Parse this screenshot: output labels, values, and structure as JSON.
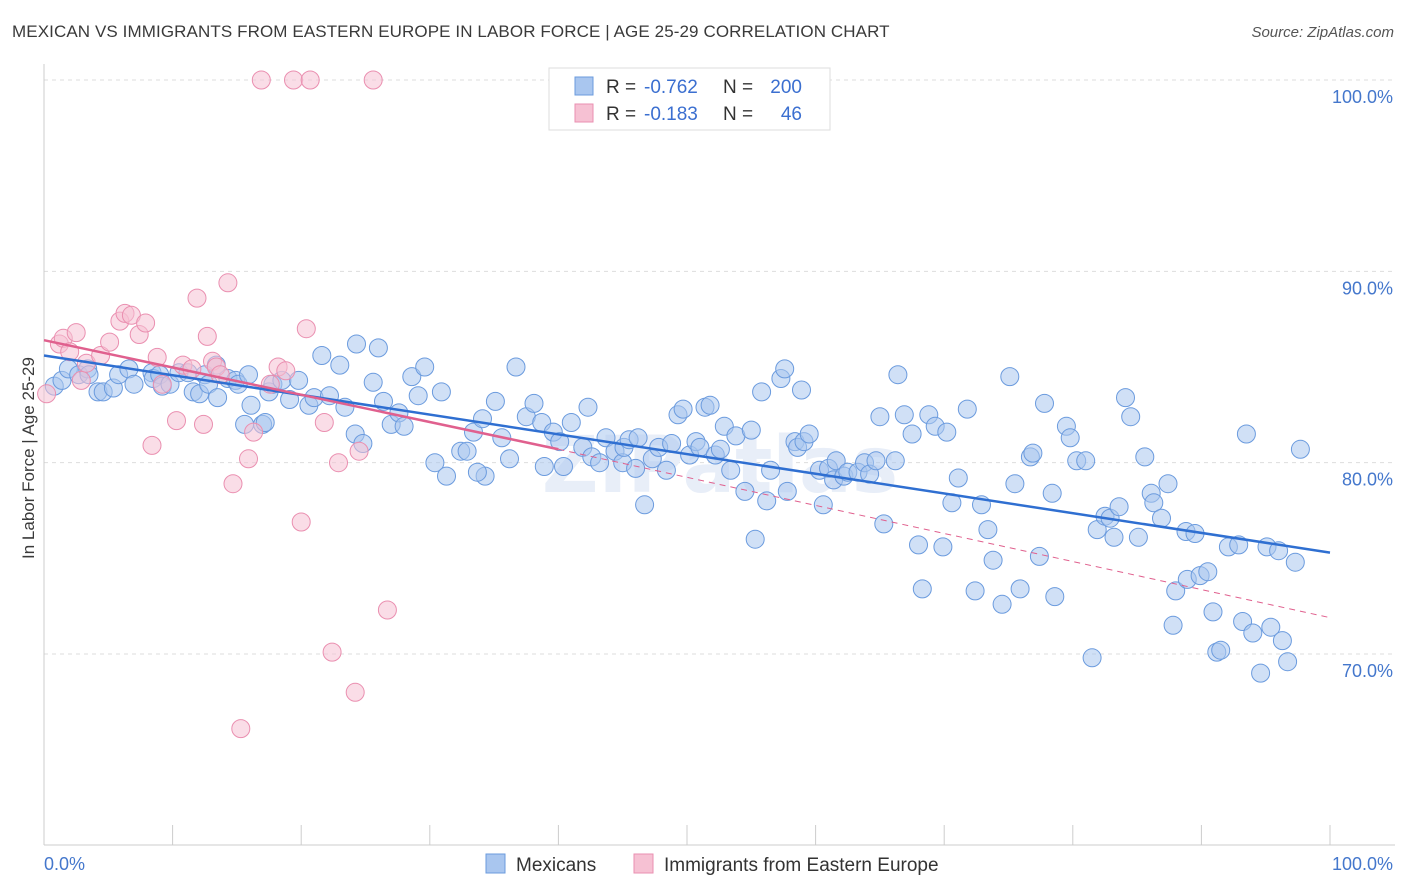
{
  "header": {
    "title": "MEXICAN VS IMMIGRANTS FROM EASTERN EUROPE IN LABOR FORCE | AGE 25-29 CORRELATION CHART",
    "source": "Source: ZipAtlas.com"
  },
  "colors": {
    "blue_fill": "#a9c6ef",
    "blue_stroke": "#6b9bde",
    "blue_line": "#2f6fd1",
    "pink_fill": "#f6c1d3",
    "pink_stroke": "#ea8fb0",
    "pink_line": "#e0608e",
    "grid": "#dddddd",
    "axis_text": "#4477cc"
  },
  "legend_top": {
    "rows": [
      {
        "r_label": "R =",
        "r_value": "-0.762",
        "n_label": "N =",
        "n_value": "200"
      },
      {
        "r_label": "R =",
        "r_value": "-0.183",
        "n_label": "N =",
        "n_value": "46"
      }
    ]
  },
  "chart_data": {
    "type": "scatter",
    "title": "MEXICAN VS IMMIGRANTS FROM EASTERN EUROPE IN LABOR FORCE | AGE 25-29 CORRELATION CHART",
    "xlabel": "",
    "ylabel": "In Labor Force | Age 25-29",
    "xlim": [
      0,
      100
    ],
    "ylim": [
      60,
      103
    ],
    "x_tick_labels": [
      "0.0%",
      "100.0%"
    ],
    "y_ticks": [
      70,
      80,
      90,
      100
    ],
    "y_tick_labels": [
      "70.0%",
      "80.0%",
      "90.0%",
      "100.0%"
    ],
    "grid": true,
    "legend": [
      "Mexicans",
      "Immigrants from Eastern Europe"
    ],
    "series": [
      {
        "name": "Mexicans",
        "trend": {
          "x": [
            0,
            100
          ],
          "y": [
            85.6,
            75.3
          ]
        },
        "points": [
          [
            0.8,
            84.0
          ],
          [
            1.4,
            84.3
          ],
          [
            1.9,
            84.9
          ],
          [
            2.7,
            84.6
          ],
          [
            3.4,
            84.9
          ],
          [
            3.5,
            84.6
          ],
          [
            4.2,
            83.7
          ],
          [
            4.6,
            83.7
          ],
          [
            5.4,
            83.9
          ],
          [
            5.8,
            84.6
          ],
          [
            6.6,
            84.9
          ],
          [
            7.0,
            84.1
          ],
          [
            8.4,
            84.7
          ],
          [
            8.5,
            84.4
          ],
          [
            9.0,
            84.6
          ],
          [
            9.2,
            84.0
          ],
          [
            9.8,
            84.1
          ],
          [
            10.5,
            84.7
          ],
          [
            11.2,
            84.7
          ],
          [
            11.6,
            83.7
          ],
          [
            12.1,
            83.6
          ],
          [
            12.5,
            84.6
          ],
          [
            12.8,
            84.1
          ],
          [
            13.4,
            85.1
          ],
          [
            13.5,
            83.4
          ],
          [
            14.3,
            84.4
          ],
          [
            14.9,
            84.3
          ],
          [
            15.1,
            84.1
          ],
          [
            15.9,
            84.6
          ],
          [
            15.6,
            82.0
          ],
          [
            16.1,
            83.0
          ],
          [
            17.0,
            82.0
          ],
          [
            17.2,
            82.1
          ],
          [
            17.5,
            83.7
          ],
          [
            17.8,
            84.1
          ],
          [
            18.5,
            84.3
          ],
          [
            19.1,
            83.3
          ],
          [
            19.8,
            84.3
          ],
          [
            20.6,
            83.0
          ],
          [
            21.0,
            83.4
          ],
          [
            21.6,
            85.6
          ],
          [
            22.2,
            83.5
          ],
          [
            23.0,
            85.1
          ],
          [
            23.4,
            82.9
          ],
          [
            24.3,
            86.2
          ],
          [
            24.2,
            81.5
          ],
          [
            24.8,
            81.0
          ],
          [
            25.6,
            84.2
          ],
          [
            26.0,
            86.0
          ],
          [
            26.4,
            83.2
          ],
          [
            27.0,
            82.0
          ],
          [
            27.6,
            82.6
          ],
          [
            28.0,
            81.9
          ],
          [
            28.6,
            84.5
          ],
          [
            29.1,
            83.5
          ],
          [
            29.6,
            85.0
          ],
          [
            30.4,
            80.0
          ],
          [
            30.9,
            83.7
          ],
          [
            31.3,
            79.3
          ],
          [
            32.4,
            80.6
          ],
          [
            32.9,
            80.6
          ],
          [
            33.4,
            81.6
          ],
          [
            34.1,
            82.3
          ],
          [
            34.3,
            79.3
          ],
          [
            35.1,
            83.2
          ],
          [
            35.6,
            81.3
          ],
          [
            36.2,
            80.2
          ],
          [
            36.7,
            85.0
          ],
          [
            37.5,
            82.4
          ],
          [
            38.1,
            83.1
          ],
          [
            38.7,
            82.1
          ],
          [
            38.9,
            79.8
          ],
          [
            39.6,
            81.6
          ],
          [
            40.1,
            81.1
          ],
          [
            40.4,
            79.8
          ],
          [
            41.0,
            82.1
          ],
          [
            41.9,
            80.8
          ],
          [
            42.3,
            82.9
          ],
          [
            42.6,
            80.3
          ],
          [
            43.2,
            80.0
          ],
          [
            43.7,
            81.3
          ],
          [
            44.4,
            80.6
          ],
          [
            45.0,
            80.0
          ],
          [
            45.1,
            80.8
          ],
          [
            45.5,
            81.2
          ],
          [
            46.0,
            79.7
          ],
          [
            46.2,
            81.3
          ],
          [
            46.7,
            77.8
          ],
          [
            47.3,
            80.2
          ],
          [
            47.8,
            80.8
          ],
          [
            48.4,
            79.6
          ],
          [
            48.8,
            81.0
          ],
          [
            49.3,
            82.5
          ],
          [
            49.7,
            82.8
          ],
          [
            50.2,
            80.4
          ],
          [
            50.7,
            81.1
          ],
          [
            51.0,
            80.8
          ],
          [
            51.4,
            82.9
          ],
          [
            51.8,
            83.0
          ],
          [
            52.2,
            80.4
          ],
          [
            52.6,
            80.7
          ],
          [
            52.9,
            81.9
          ],
          [
            53.4,
            79.6
          ],
          [
            53.8,
            81.4
          ],
          [
            54.5,
            78.5
          ],
          [
            55.0,
            81.7
          ],
          [
            55.3,
            76.0
          ],
          [
            55.8,
            83.7
          ],
          [
            56.2,
            78.0
          ],
          [
            56.5,
            79.6
          ],
          [
            57.3,
            84.4
          ],
          [
            57.6,
            84.9
          ],
          [
            57.8,
            78.5
          ],
          [
            58.4,
            81.1
          ],
          [
            58.6,
            80.8
          ],
          [
            59.1,
            81.1
          ],
          [
            59.5,
            81.5
          ],
          [
            60.3,
            79.6
          ],
          [
            60.6,
            77.8
          ],
          [
            61.0,
            79.7
          ],
          [
            61.4,
            79.1
          ],
          [
            61.6,
            80.1
          ],
          [
            62.2,
            79.3
          ],
          [
            62.5,
            79.5
          ],
          [
            63.3,
            79.5
          ],
          [
            63.8,
            80.0
          ],
          [
            64.2,
            79.4
          ],
          [
            64.7,
            80.1
          ],
          [
            65.0,
            82.4
          ],
          [
            65.3,
            76.8
          ],
          [
            66.2,
            80.1
          ],
          [
            66.4,
            84.6
          ],
          [
            66.9,
            82.5
          ],
          [
            67.5,
            81.5
          ],
          [
            68.0,
            75.7
          ],
          [
            68.3,
            73.4
          ],
          [
            68.8,
            82.5
          ],
          [
            69.3,
            81.9
          ],
          [
            69.9,
            75.6
          ],
          [
            70.2,
            81.6
          ],
          [
            70.6,
            77.9
          ],
          [
            71.1,
            79.2
          ],
          [
            71.8,
            82.8
          ],
          [
            72.4,
            73.3
          ],
          [
            72.9,
            77.8
          ],
          [
            73.4,
            76.5
          ],
          [
            73.8,
            74.9
          ],
          [
            74.5,
            72.6
          ],
          [
            75.1,
            84.5
          ],
          [
            75.5,
            78.9
          ],
          [
            75.9,
            73.4
          ],
          [
            76.7,
            80.3
          ],
          [
            76.9,
            80.5
          ],
          [
            77.4,
            75.1
          ],
          [
            77.8,
            83.1
          ],
          [
            78.4,
            78.4
          ],
          [
            78.6,
            73.0
          ],
          [
            79.5,
            81.9
          ],
          [
            79.8,
            81.3
          ],
          [
            80.3,
            80.1
          ],
          [
            81.0,
            80.1
          ],
          [
            81.5,
            69.8
          ],
          [
            81.9,
            76.5
          ],
          [
            82.5,
            77.2
          ],
          [
            82.9,
            77.1
          ],
          [
            83.2,
            76.1
          ],
          [
            83.6,
            77.7
          ],
          [
            84.1,
            83.4
          ],
          [
            84.5,
            82.4
          ],
          [
            85.1,
            76.1
          ],
          [
            85.6,
            80.3
          ],
          [
            86.1,
            78.4
          ],
          [
            86.3,
            77.9
          ],
          [
            86.9,
            77.1
          ],
          [
            87.4,
            78.9
          ],
          [
            87.8,
            71.5
          ],
          [
            88.0,
            73.3
          ],
          [
            88.8,
            76.4
          ],
          [
            88.9,
            73.9
          ],
          [
            89.5,
            76.3
          ],
          [
            89.9,
            74.1
          ],
          [
            90.5,
            74.3
          ],
          [
            90.9,
            72.2
          ],
          [
            91.2,
            70.1
          ],
          [
            91.5,
            70.2
          ],
          [
            92.1,
            75.6
          ],
          [
            92.9,
            75.7
          ],
          [
            93.2,
            71.7
          ],
          [
            93.5,
            81.5
          ],
          [
            94.0,
            71.1
          ],
          [
            94.6,
            69.0
          ],
          [
            95.1,
            75.6
          ],
          [
            95.4,
            71.4
          ],
          [
            96.0,
            75.4
          ],
          [
            96.3,
            70.7
          ],
          [
            96.7,
            69.6
          ],
          [
            97.3,
            74.8
          ],
          [
            97.7,
            80.7
          ],
          [
            58.9,
            83.8
          ],
          [
            33.7,
            79.5
          ]
        ]
      },
      {
        "name": "Immigrants from Eastern Europe",
        "trend": {
          "x": [
            0,
            40
          ],
          "y": [
            86.4,
            80.7
          ]
        },
        "trend_dashed": {
          "x": [
            40,
            100
          ],
          "y": [
            80.7,
            71.9
          ]
        },
        "points": [
          [
            0.2,
            83.6
          ],
          [
            1.2,
            86.2
          ],
          [
            1.5,
            86.5
          ],
          [
            2.0,
            85.8
          ],
          [
            2.5,
            86.8
          ],
          [
            2.9,
            84.3
          ],
          [
            3.3,
            85.2
          ],
          [
            4.4,
            85.6
          ],
          [
            5.1,
            86.3
          ],
          [
            5.9,
            87.4
          ],
          [
            6.3,
            87.8
          ],
          [
            6.8,
            87.7
          ],
          [
            7.4,
            86.7
          ],
          [
            7.9,
            87.3
          ],
          [
            8.4,
            80.9
          ],
          [
            8.8,
            85.5
          ],
          [
            9.2,
            84.1
          ],
          [
            10.3,
            82.2
          ],
          [
            10.8,
            85.1
          ],
          [
            11.5,
            84.9
          ],
          [
            11.9,
            88.6
          ],
          [
            12.4,
            82.0
          ],
          [
            12.7,
            86.6
          ],
          [
            13.1,
            85.3
          ],
          [
            13.4,
            85.0
          ],
          [
            13.7,
            84.6
          ],
          [
            14.3,
            89.4
          ],
          [
            14.7,
            78.9
          ],
          [
            15.3,
            66.1
          ],
          [
            15.9,
            80.2
          ],
          [
            16.3,
            81.6
          ],
          [
            16.9,
            100.0
          ],
          [
            17.6,
            84.1
          ],
          [
            18.2,
            85.0
          ],
          [
            18.8,
            84.8
          ],
          [
            19.4,
            100.0
          ],
          [
            20.0,
            76.9
          ],
          [
            20.4,
            87.0
          ],
          [
            20.7,
            100.0
          ],
          [
            21.8,
            82.1
          ],
          [
            22.4,
            70.1
          ],
          [
            22.9,
            80.0
          ],
          [
            24.2,
            68.0
          ],
          [
            25.6,
            100.0
          ],
          [
            26.7,
            72.3
          ],
          [
            24.5,
            80.6
          ]
        ]
      }
    ]
  },
  "watermark": "ZIPatlas",
  "bottom_legend": {
    "items": [
      {
        "label": "Mexicans"
      },
      {
        "label": "Immigrants from Eastern Europe"
      }
    ]
  }
}
